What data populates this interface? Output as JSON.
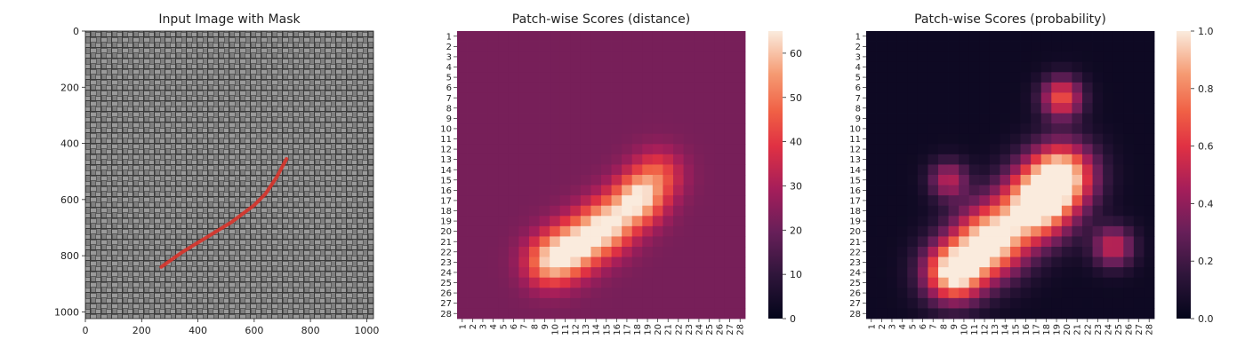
{
  "chart_data": [
    {
      "type": "image",
      "title": "Input Image with Mask",
      "xlim": [
        0,
        1024
      ],
      "ylim": [
        1024,
        0
      ],
      "x_ticks": [
        0,
        200,
        400,
        600,
        800,
        1000
      ],
      "y_ticks": [
        0,
        200,
        400,
        600,
        800,
        1000
      ],
      "mask_color": "#d9342b",
      "texture_color": "#6f6f6f",
      "mask_curve": [
        [
          270,
          840
        ],
        [
          340,
          790
        ],
        [
          430,
          735
        ],
        [
          520,
          680
        ],
        [
          600,
          620
        ],
        [
          640,
          580
        ],
        [
          680,
          520
        ],
        [
          715,
          455
        ]
      ]
    },
    {
      "type": "heatmap",
      "title": "Patch-wise Scores (distance)",
      "rows": 28,
      "cols": 28,
      "row_labels": [
        "1",
        "2",
        "3",
        "4",
        "5",
        "6",
        "7",
        "8",
        "9",
        "10",
        "11",
        "12",
        "13",
        "14",
        "15",
        "16",
        "17",
        "18",
        "19",
        "20",
        "21",
        "22",
        "23",
        "24",
        "25",
        "26",
        "27",
        "28"
      ],
      "col_labels": [
        "1",
        "2",
        "3",
        "4",
        "5",
        "6",
        "7",
        "8",
        "9",
        "10",
        "11",
        "12",
        "13",
        "14",
        "15",
        "16",
        "17",
        "18",
        "19",
        "20",
        "21",
        "22",
        "23",
        "24",
        "25",
        "26",
        "27",
        "28"
      ],
      "colormap": "rocket",
      "colorbar": {
        "min": 0,
        "max": 65,
        "ticks": [
          0,
          10,
          20,
          30,
          40,
          50,
          60
        ]
      },
      "background_value": 22,
      "peaks": [
        {
          "row": 23.0,
          "col": 9.5,
          "sigma": 1.7,
          "amp": 34
        },
        {
          "row": 21.5,
          "col": 12.0,
          "sigma": 1.8,
          "amp": 38
        },
        {
          "row": 19.5,
          "col": 15.0,
          "sigma": 1.8,
          "amp": 40
        },
        {
          "row": 17.0,
          "col": 18.0,
          "sigma": 1.7,
          "amp": 40
        },
        {
          "row": 14.5,
          "col": 20.0,
          "sigma": 1.7,
          "amp": 22
        }
      ]
    },
    {
      "type": "heatmap",
      "title": "Patch-wise Scores (probability)",
      "rows": 28,
      "cols": 28,
      "row_labels": [
        "1",
        "2",
        "3",
        "4",
        "5",
        "6",
        "7",
        "8",
        "9",
        "10",
        "11",
        "12",
        "13",
        "14",
        "15",
        "16",
        "17",
        "18",
        "19",
        "20",
        "21",
        "22",
        "23",
        "24",
        "25",
        "26",
        "27",
        "28"
      ],
      "col_labels": [
        "1",
        "2",
        "3",
        "4",
        "5",
        "6",
        "7",
        "8",
        "9",
        "10",
        "11",
        "12",
        "13",
        "14",
        "15",
        "16",
        "17",
        "18",
        "19",
        "20",
        "21",
        "22",
        "23",
        "24",
        "25",
        "26",
        "27",
        "28"
      ],
      "colormap": "rocket",
      "colorbar": {
        "min": 0.0,
        "max": 1.0,
        "ticks": [
          "0.0",
          "0.2",
          "0.4",
          "0.6",
          "0.8",
          "1.0"
        ],
        "tick_values": [
          0.0,
          0.2,
          0.4,
          0.6,
          0.8,
          1.0
        ]
      },
      "background_value": 0.04,
      "peaks": [
        {
          "row": 24.0,
          "col": 9.0,
          "sigma": 2.0,
          "amp": 1.0
        },
        {
          "row": 21.0,
          "col": 12.5,
          "sigma": 2.4,
          "amp": 1.0
        },
        {
          "row": 17.5,
          "col": 17.0,
          "sigma": 2.4,
          "amp": 1.0
        },
        {
          "row": 14.5,
          "col": 19.5,
          "sigma": 2.2,
          "amp": 0.95
        },
        {
          "row": 7.0,
          "col": 19.5,
          "sigma": 1.4,
          "amp": 0.65
        },
        {
          "row": 15.0,
          "col": 8.5,
          "sigma": 1.3,
          "amp": 0.45
        },
        {
          "row": 21.5,
          "col": 24.5,
          "sigma": 1.4,
          "amp": 0.5
        }
      ]
    }
  ]
}
